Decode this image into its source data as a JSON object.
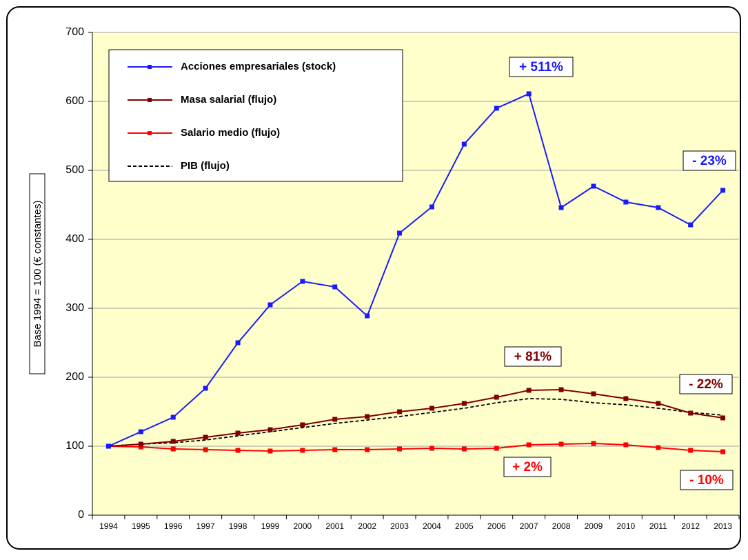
{
  "chart_data": {
    "type": "line",
    "y_label": "Base 1994 = 100 (€ constantes)",
    "categories": [
      "1994",
      "1995",
      "1996",
      "1997",
      "1998",
      "1999",
      "2000",
      "2001",
      "2002",
      "2003",
      "2004",
      "2005",
      "2006",
      "2007",
      "2008",
      "2009",
      "2010",
      "2011",
      "2012",
      "2013"
    ],
    "series": [
      {
        "name": "Acciones empresariales (stock)",
        "color": "#1a1aff",
        "marker": true,
        "values": [
          100,
          121,
          142,
          184,
          250,
          305,
          339,
          331,
          289,
          409,
          447,
          538,
          590,
          611,
          446,
          477,
          454,
          446,
          421,
          471
        ]
      },
      {
        "name": "Masa salarial (flujo)",
        "color": "#800000",
        "marker": true,
        "values": [
          100,
          103,
          107,
          113,
          119,
          124,
          131,
          139,
          143,
          150,
          155,
          162,
          171,
          181,
          182,
          176,
          169,
          162,
          148,
          141
        ]
      },
      {
        "name": "Salario medio (flujo)",
        "color": "#ff0000",
        "marker": true,
        "values": [
          100,
          99,
          96,
          95,
          94,
          93,
          94,
          95,
          95,
          96,
          97,
          96,
          97,
          102,
          103,
          104,
          102,
          98,
          94,
          92
        ]
      },
      {
        "name": "PIB (flujo)",
        "color": "#000000",
        "dashed": true,
        "marker": false,
        "values": [
          100,
          103,
          105,
          109,
          115,
          121,
          127,
          133,
          138,
          143,
          149,
          155,
          163,
          169,
          168,
          163,
          160,
          155,
          149,
          145
        ]
      }
    ],
    "annotations": [
      {
        "text": "+ 511%",
        "color": "#1a1aff"
      },
      {
        "text": "- 23%",
        "color": "#1a1aff"
      },
      {
        "text": "+ 81%",
        "color": "#800000"
      },
      {
        "text": "- 22%",
        "color": "#800000"
      },
      {
        "text": "+ 2%",
        "color": "#ff0000"
      },
      {
        "text": "- 10%",
        "color": "#ff0000"
      }
    ],
    "ylim": [
      0,
      700
    ],
    "yticks": [
      0,
      100,
      200,
      300,
      400,
      500,
      600,
      700
    ],
    "grid": true,
    "background": "#ffffcc"
  }
}
